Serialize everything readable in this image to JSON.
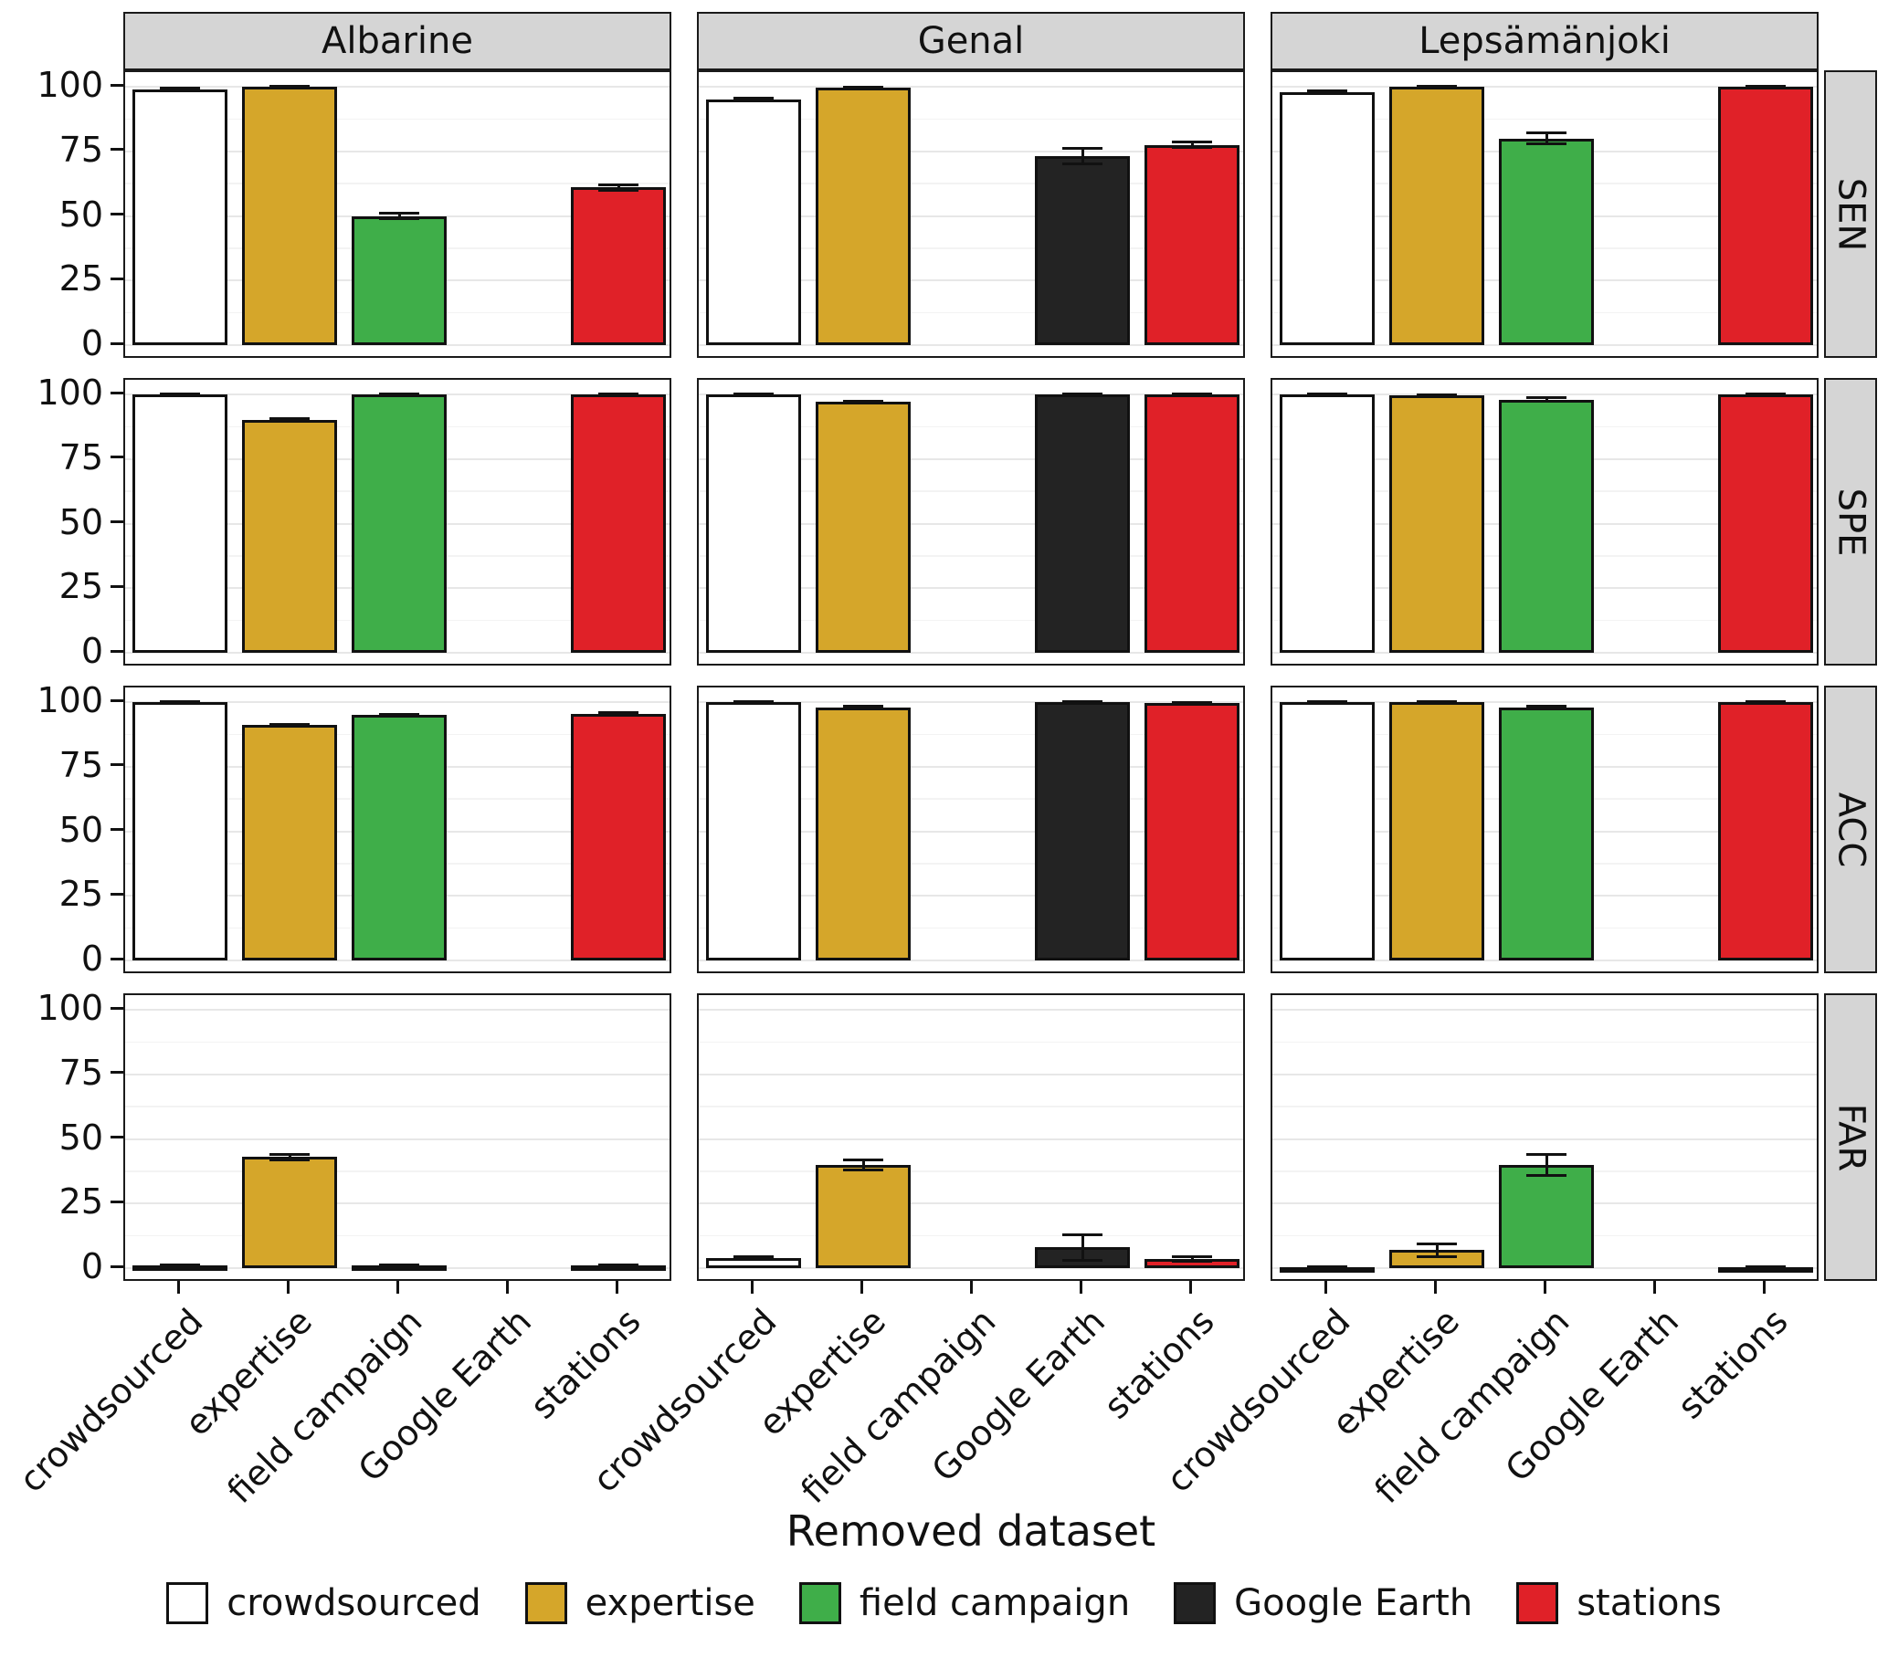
{
  "chart_data": {
    "type": "bar",
    "title": "",
    "xlabel": "Removed dataset",
    "ylabel": "",
    "ylim": [
      0,
      100
    ],
    "yticks": [
      0,
      25,
      50,
      75,
      100
    ],
    "grid": "on",
    "legend_position": "bottom",
    "categories": [
      "crowdsourced",
      "expertise",
      "field campaign",
      "Google Earth",
      "stations"
    ],
    "series_colors": {
      "crowdsourced": "#ffffff",
      "expertise": "#d5a62a",
      "field campaign": "#3fae49",
      "Google Earth": "#232323",
      "stations": "#e02128"
    },
    "col_facets": [
      "Albarine",
      "Genal",
      "Lepsämänjoki"
    ],
    "row_facets": [
      "SEN",
      "SPE",
      "ACC",
      "FAR"
    ],
    "panels": [
      {
        "row_facet": "SEN",
        "col_facet": "Albarine",
        "values": [
          99,
          100,
          50,
          null,
          61
        ],
        "errors": [
          0.4,
          0.3,
          1,
          null,
          1
        ]
      },
      {
        "row_facet": "SEN",
        "col_facet": "Genal",
        "values": [
          95,
          99.5,
          null,
          73,
          77.5
        ],
        "errors": [
          0.6,
          0.3,
          null,
          3,
          1
        ]
      },
      {
        "row_facet": "SEN",
        "col_facet": "Lepsämänjoki",
        "values": [
          98,
          100,
          80,
          null,
          100
        ],
        "errors": [
          0.4,
          0.2,
          2,
          null,
          0.3
        ]
      },
      {
        "row_facet": "SPE",
        "col_facet": "Albarine",
        "values": [
          100,
          90,
          100,
          null,
          100
        ],
        "errors": [
          0.1,
          0.5,
          0.2,
          null,
          0.2
        ]
      },
      {
        "row_facet": "SPE",
        "col_facet": "Genal",
        "values": [
          100,
          97,
          null,
          100,
          100
        ],
        "errors": [
          0.1,
          0.4,
          null,
          0.2,
          0.2
        ]
      },
      {
        "row_facet": "SPE",
        "col_facet": "Lepsämänjoki",
        "values": [
          100,
          99.5,
          98,
          null,
          100
        ],
        "errors": [
          0.1,
          0.2,
          0.6,
          null,
          0.1
        ]
      },
      {
        "row_facet": "ACC",
        "col_facet": "Albarine",
        "values": [
          100,
          91,
          95,
          null,
          95.5
        ],
        "errors": [
          0.1,
          0.4,
          0.3,
          null,
          0.3
        ]
      },
      {
        "row_facet": "ACC",
        "col_facet": "Genal",
        "values": [
          100,
          98,
          null,
          100,
          99.5
        ],
        "errors": [
          0.1,
          0.3,
          null,
          0.1,
          0.2
        ]
      },
      {
        "row_facet": "ACC",
        "col_facet": "Lepsämänjoki",
        "values": [
          100,
          100,
          98,
          null,
          100
        ],
        "errors": [
          0.1,
          0.1,
          0.4,
          null,
          0.1
        ]
      },
      {
        "row_facet": "FAR",
        "col_facet": "Albarine",
        "values": [
          1,
          43,
          1,
          null,
          1
        ],
        "errors": [
          0.3,
          1,
          0.3,
          null,
          0.3
        ]
      },
      {
        "row_facet": "FAR",
        "col_facet": "Genal",
        "values": [
          4,
          40,
          null,
          8,
          3.5
        ],
        "errors": [
          0.5,
          2,
          null,
          5,
          1
        ]
      },
      {
        "row_facet": "FAR",
        "col_facet": "Lepsämänjoki",
        "values": [
          0.5,
          7,
          40,
          null,
          0.5
        ],
        "errors": [
          0.2,
          2.5,
          4,
          null,
          0.2
        ]
      }
    ]
  },
  "legend": {
    "items": [
      {
        "label": "crowdsourced",
        "color": "#ffffff"
      },
      {
        "label": "expertise",
        "color": "#d5a62a"
      },
      {
        "label": "field campaign",
        "color": "#3fae49"
      },
      {
        "label": "Google Earth",
        "color": "#232323"
      },
      {
        "label": "stations",
        "color": "#e02128"
      }
    ]
  }
}
